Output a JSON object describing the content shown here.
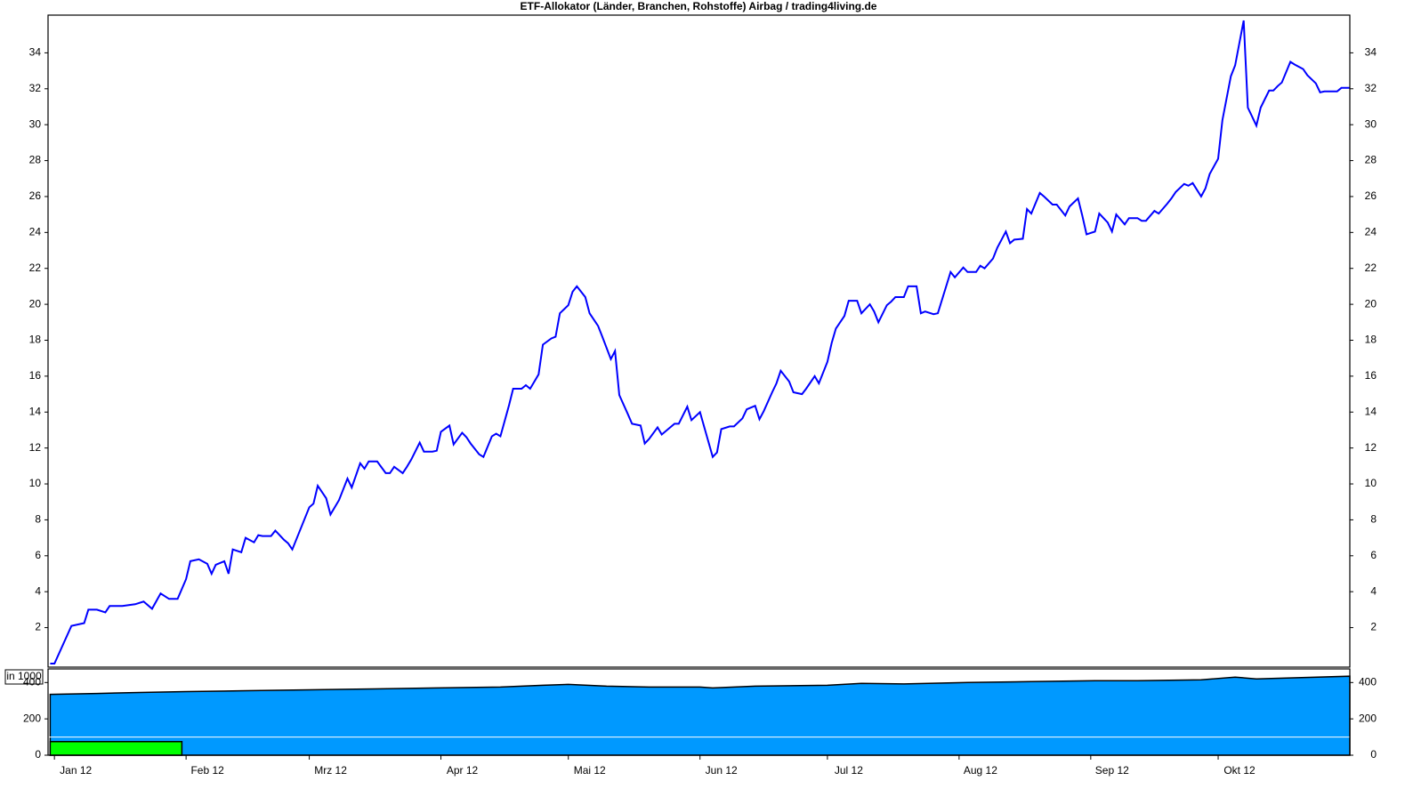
{
  "chart_data": [
    {
      "type": "line",
      "title": "ETF-Allokator (Länder, Branchen, Rohstoffe) Airbag / trading4living.de",
      "color": "#0000ff",
      "x": [
        -1,
        0,
        4,
        7,
        8,
        10,
        12,
        13,
        16,
        19,
        21,
        23,
        25,
        27,
        29,
        31,
        32,
        34,
        36,
        37,
        38,
        40,
        41,
        42,
        44,
        45,
        47,
        48,
        49,
        51,
        52,
        54,
        55,
        56,
        60,
        61,
        62,
        64,
        65,
        67,
        69,
        70,
        72,
        73,
        74,
        76,
        78,
        79,
        80,
        82,
        83,
        84,
        86,
        87,
        89,
        90,
        91,
        93,
        94,
        96,
        97,
        98,
        100,
        101,
        103,
        104,
        105,
        107,
        108,
        110,
        111,
        112,
        114,
        115,
        117,
        118,
        119,
        121,
        122,
        123,
        125,
        126,
        128,
        129,
        131,
        132,
        133,
        135,
        136,
        138,
        139,
        140,
        142,
        143,
        145,
        146,
        147,
        149,
        150,
        152,
        155,
        156,
        157,
        159,
        160,
        162,
        163,
        165,
        166,
        167,
        169,
        170,
        171,
        173,
        174,
        176,
        177,
        179,
        180,
        182,
        183,
        184,
        186,
        187,
        189,
        190,
        192,
        193,
        194,
        196,
        197,
        198,
        200,
        201,
        203,
        204,
        205,
        207,
        208,
        211,
        212,
        214,
        215,
        217,
        218,
        219,
        221,
        222,
        224,
        225,
        226,
        228,
        229,
        230,
        232,
        233,
        235,
        236,
        238,
        239,
        241,
        242,
        243,
        245,
        246,
        248,
        249,
        250,
        252,
        253,
        255,
        256,
        257,
        259,
        260,
        262,
        263,
        264,
        266,
        267,
        268,
        270,
        271,
        272,
        274,
        275,
        277,
        278,
        280,
        281,
        283,
        284,
        286,
        287,
        288,
        289,
        291,
        292,
        294,
        295,
        297,
        298,
        299,
        301,
        302,
        303,
        305
      ],
      "values": [
        0,
        0,
        2.1,
        2.25,
        3.0,
        3.0,
        2.85,
        3.2,
        3.2,
        3.3,
        3.45,
        3.05,
        3.9,
        3.6,
        3.6,
        4.7,
        5.7,
        5.8,
        5.55,
        5.0,
        5.5,
        5.7,
        5.0,
        6.35,
        6.2,
        7.0,
        6.75,
        7.15,
        7.1,
        7.1,
        7.4,
        6.9,
        6.7,
        6.35,
        8.7,
        8.9,
        9.9,
        9.2,
        8.3,
        9.1,
        10.3,
        9.8,
        11.15,
        10.85,
        11.25,
        11.25,
        10.6,
        10.6,
        10.95,
        10.6,
        10.95,
        11.35,
        12.3,
        11.8,
        11.8,
        11.85,
        12.9,
        13.25,
        12.2,
        12.85,
        12.6,
        12.25,
        11.65,
        11.5,
        12.65,
        12.8,
        12.65,
        14.35,
        15.3,
        15.3,
        15.5,
        15.3,
        16.1,
        17.75,
        18.1,
        18.2,
        19.5,
        19.95,
        20.7,
        21.0,
        20.4,
        19.5,
        18.8,
        18.2,
        16.95,
        17.4,
        14.95,
        13.9,
        13.35,
        13.25,
        12.25,
        12.5,
        13.15,
        12.75,
        13.15,
        13.35,
        13.35,
        14.3,
        13.55,
        14.0,
        11.5,
        11.75,
        13.05,
        13.2,
        13.2,
        13.65,
        14.15,
        14.35,
        13.6,
        14.05,
        15.1,
        15.6,
        16.3,
        15.7,
        15.1,
        15.0,
        15.3,
        16.0,
        15.6,
        16.8,
        17.85,
        18.65,
        19.35,
        20.2,
        20.2,
        19.5,
        20.0,
        19.6,
        19.0,
        19.95,
        20.15,
        20.4,
        20.4,
        21.0,
        21.0,
        19.5,
        19.6,
        19.45,
        19.5,
        21.8,
        21.5,
        22.05,
        21.8,
        21.8,
        22.15,
        22.0,
        22.55,
        23.15,
        24.05,
        23.4,
        23.6,
        23.65,
        25.3,
        25.05,
        26.2,
        26.0,
        25.55,
        25.55,
        24.95,
        25.45,
        25.9,
        24.95,
        23.9,
        24.05,
        25.05,
        24.55,
        24.05,
        25.0,
        24.45,
        24.8,
        24.8,
        24.65,
        24.65,
        25.2,
        25.05,
        25.6,
        25.9,
        26.25,
        26.7,
        26.6,
        26.75,
        26.0,
        26.45,
        27.25,
        28.1,
        30.25,
        32.7,
        33.3,
        35.8,
        30.95,
        29.95,
        30.95,
        31.9,
        31.9,
        32.15,
        32.35,
        33.5,
        33.35,
        33.1,
        32.75,
        32.3,
        31.8,
        31.85,
        31.85,
        31.85,
        32.05,
        32.05
      ],
      "xlim": [
        -1.5,
        305
      ],
      "ylim": [
        -0.2,
        36.1
      ],
      "yticks": [
        2,
        4,
        6,
        8,
        10,
        12,
        14,
        16,
        18,
        20,
        22,
        24,
        26,
        28,
        30,
        32,
        34
      ]
    },
    {
      "type": "area",
      "unit_label": "in 1000",
      "series": [
        {
          "color": "#0099ff",
          "x": [
            -1,
            10,
            20,
            31,
            45,
            60,
            75,
            90,
            105,
            115,
            121,
            130,
            140,
            152,
            155,
            165,
            182,
            190,
            200,
            215,
            230,
            245,
            255,
            270,
            278,
            283,
            305
          ],
          "values": [
            335,
            340,
            345,
            350,
            355,
            360,
            365,
            370,
            375,
            385,
            390,
            380,
            375,
            375,
            370,
            380,
            385,
            395,
            392,
            400,
            405,
            410,
            410,
            415,
            430,
            420,
            435
          ]
        },
        {
          "color": "#00ff00",
          "x": [
            -1,
            30
          ],
          "values": [
            75,
            75
          ]
        }
      ],
      "hline": 100,
      "xlim": [
        -1.5,
        305
      ],
      "xticks": [
        {
          "value": 0,
          "label": "Jan 12"
        },
        {
          "value": 31,
          "label": "Feb 12"
        },
        {
          "value": 60,
          "label": "Mrz 12"
        },
        {
          "value": 91,
          "label": "Apr 12"
        },
        {
          "value": 121,
          "label": "Mai 12"
        },
        {
          "value": 152,
          "label": "Jun 12"
        },
        {
          "value": 182,
          "label": "Jul 12"
        },
        {
          "value": 213,
          "label": "Aug 12"
        },
        {
          "value": 244,
          "label": "Sep 12"
        },
        {
          "value": 274,
          "label": "Okt 12"
        }
      ],
      "ylim": [
        0,
        475
      ],
      "yticks": [
        0,
        200,
        400
      ]
    }
  ]
}
